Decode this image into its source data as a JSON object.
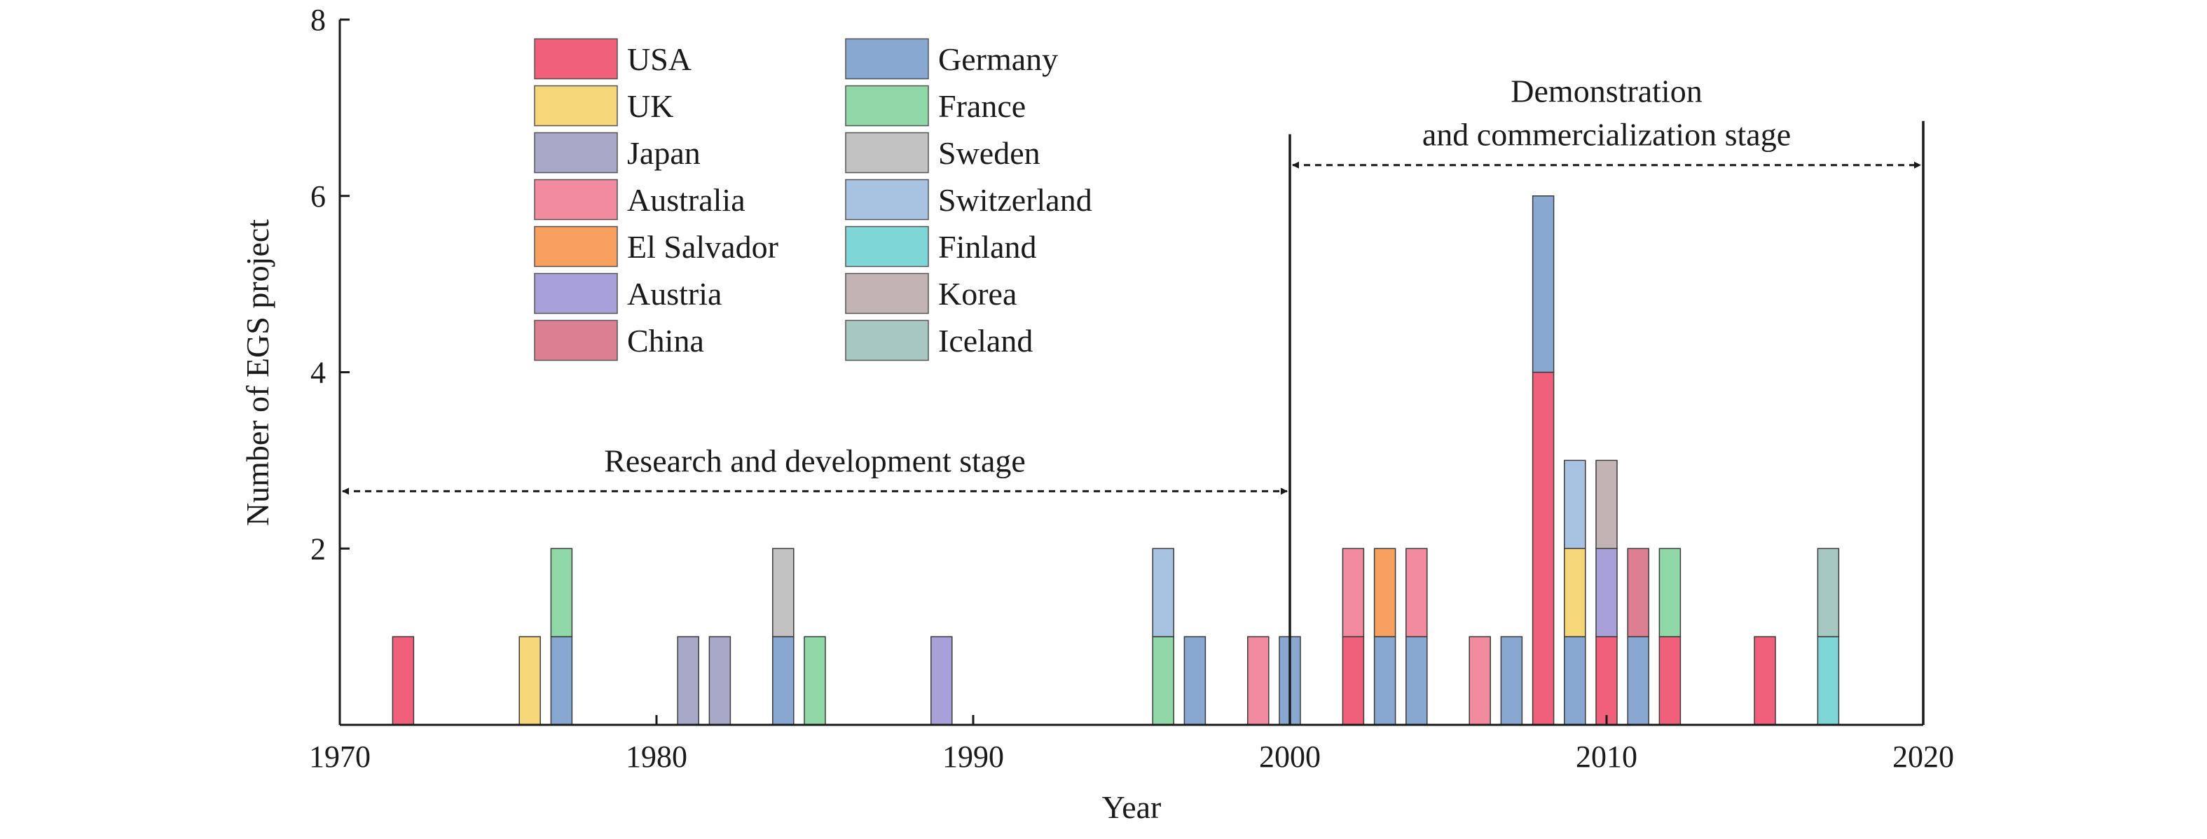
{
  "chart_data": {
    "type": "bar",
    "stacked": true,
    "xlabel": "Year",
    "ylabel": "Number of EGS project",
    "xlim": [
      1970,
      2020
    ],
    "ylim": [
      0,
      8
    ],
    "xticks": [
      1970,
      1980,
      1990,
      2000,
      2010,
      2020
    ],
    "yticks": [
      2,
      4,
      6,
      8
    ],
    "grid": false,
    "legend": {
      "placement": "top-left",
      "columns": 2,
      "entries": [
        {
          "name": "USA",
          "color": "#f0607a"
        },
        {
          "name": "UK",
          "color": "#f5d679"
        },
        {
          "name": "Japan",
          "color": "#a8a8c8"
        },
        {
          "name": "Australia",
          "color": "#f28aa0"
        },
        {
          "name": "El Salvador",
          "color": "#f7a060"
        },
        {
          "name": "Austria",
          "color": "#a8a0d8"
        },
        {
          "name": "China",
          "color": "#dd7f92"
        },
        {
          "name": "Germany",
          "color": "#88a8d2"
        },
        {
          "name": "France",
          "color": "#90d8a8"
        },
        {
          "name": "Sweden",
          "color": "#c2c2c2"
        },
        {
          "name": "Switzerland",
          "color": "#a8c2e2"
        },
        {
          "name": "Finland",
          "color": "#7ed6d6"
        },
        {
          "name": "Korea",
          "color": "#c2b4b4"
        },
        {
          "name": "Iceland",
          "color": "#a6c8c0"
        }
      ]
    },
    "bars": [
      {
        "x": 1972,
        "stack": [
          {
            "series": "USA",
            "value": 1
          }
        ]
      },
      {
        "x": 1976,
        "stack": [
          {
            "series": "UK",
            "value": 1
          }
        ]
      },
      {
        "x": 1977,
        "stack": [
          {
            "series": "Germany",
            "value": 1
          },
          {
            "series": "France",
            "value": 1
          }
        ]
      },
      {
        "x": 1981,
        "stack": [
          {
            "series": "Japan",
            "value": 1
          }
        ]
      },
      {
        "x": 1982,
        "stack": [
          {
            "series": "Japan",
            "value": 1
          }
        ]
      },
      {
        "x": 1984,
        "stack": [
          {
            "series": "Germany",
            "value": 1
          },
          {
            "series": "Sweden",
            "value": 1
          }
        ]
      },
      {
        "x": 1985,
        "stack": [
          {
            "series": "France",
            "value": 1
          }
        ]
      },
      {
        "x": 1989,
        "stack": [
          {
            "series": "Austria",
            "value": 1
          }
        ]
      },
      {
        "x": 1996,
        "stack": [
          {
            "series": "France",
            "value": 1
          },
          {
            "series": "Switzerland",
            "value": 1
          }
        ]
      },
      {
        "x": 1997,
        "stack": [
          {
            "series": "Germany",
            "value": 1
          }
        ]
      },
      {
        "x": 1999,
        "stack": [
          {
            "series": "Australia",
            "value": 1
          }
        ]
      },
      {
        "x": 2000,
        "stack": [
          {
            "series": "Germany",
            "value": 1
          }
        ]
      },
      {
        "x": 2002,
        "stack": [
          {
            "series": "USA",
            "value": 1
          },
          {
            "series": "Australia",
            "value": 1
          }
        ]
      },
      {
        "x": 2003,
        "stack": [
          {
            "series": "Germany",
            "value": 1
          },
          {
            "series": "El Salvador",
            "value": 1
          }
        ]
      },
      {
        "x": 2004,
        "stack": [
          {
            "series": "Germany",
            "value": 1
          },
          {
            "series": "Australia",
            "value": 1
          }
        ]
      },
      {
        "x": 2006,
        "stack": [
          {
            "series": "Australia",
            "value": 1
          }
        ]
      },
      {
        "x": 2007,
        "stack": [
          {
            "series": "Germany",
            "value": 1
          }
        ]
      },
      {
        "x": 2008,
        "stack": [
          {
            "series": "USA",
            "value": 4
          },
          {
            "series": "Germany",
            "value": 2
          }
        ]
      },
      {
        "x": 2009,
        "stack": [
          {
            "series": "Germany",
            "value": 1
          },
          {
            "series": "UK",
            "value": 1
          },
          {
            "series": "Switzerland",
            "value": 1
          }
        ]
      },
      {
        "x": 2010,
        "stack": [
          {
            "series": "USA",
            "value": 1
          },
          {
            "series": "Austria",
            "value": 1
          },
          {
            "series": "Korea",
            "value": 1
          }
        ]
      },
      {
        "x": 2011,
        "stack": [
          {
            "series": "Germany",
            "value": 1
          },
          {
            "series": "China",
            "value": 1
          }
        ]
      },
      {
        "x": 2012,
        "stack": [
          {
            "series": "USA",
            "value": 1
          },
          {
            "series": "France",
            "value": 1
          }
        ]
      },
      {
        "x": 2015,
        "stack": [
          {
            "series": "USA",
            "value": 1
          }
        ]
      },
      {
        "x": 2017,
        "stack": [
          {
            "series": "Finland",
            "value": 1
          },
          {
            "series": "Iceland",
            "value": 1
          }
        ]
      }
    ],
    "annotations": [
      {
        "text": "Research and development stage",
        "from": 1970,
        "to": 2000,
        "y": 2.65
      },
      {
        "lines": [
          "Demonstration",
          "and commercialization stage"
        ],
        "from": 2000,
        "to": 2020,
        "y": 6.35
      }
    ],
    "stage_boundaries": [
      {
        "x": 2000,
        "top": 6.7
      },
      {
        "x": 2020,
        "top": 6.85
      }
    ]
  }
}
